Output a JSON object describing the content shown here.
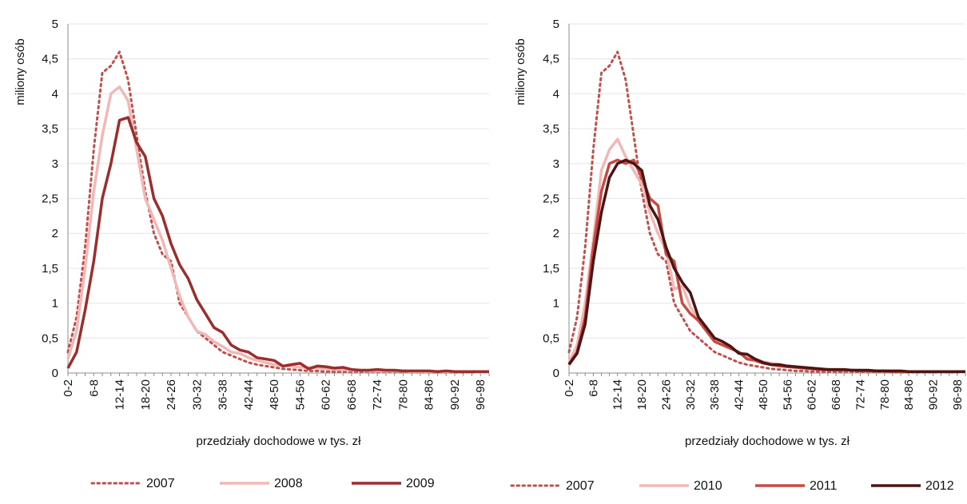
{
  "chart_data": [
    {
      "type": "line",
      "ylabel": "miliony osób",
      "xlabel": "przedziały dochodowe w tys. zł",
      "ylim": [
        0,
        5
      ],
      "yticks": [
        "0",
        "0,5",
        "1",
        "1,5",
        "2",
        "2,5",
        "3",
        "3,5",
        "4",
        "4,5",
        "5"
      ],
      "xtick_labels": [
        "0-2",
        "6-8",
        "12-14",
        "18-20",
        "24-26",
        "30-32",
        "36-38",
        "42-44",
        "48-50",
        "54-56",
        "60-62",
        "66-68",
        "72-74",
        "78-80",
        "84-86",
        "90-92",
        "96-98"
      ],
      "xtick_every": 3,
      "grid": true,
      "legend_position": "bottom",
      "series": [
        {
          "name": "2007",
          "color": "#c0504d",
          "style": "dotted",
          "values": [
            0.3,
            0.8,
            1.8,
            3.2,
            4.3,
            4.4,
            4.6,
            4.2,
            3.4,
            2.6,
            2.0,
            1.7,
            1.6,
            1.0,
            0.8,
            0.6,
            0.5,
            0.4,
            0.3,
            0.25,
            0.2,
            0.15,
            0.12,
            0.1,
            0.08,
            0.06,
            0.05,
            0.04,
            0.03,
            0.03,
            0.02,
            0.02,
            0.02,
            0.02,
            0.02,
            0.02,
            0.02,
            0.02,
            0.02,
            0.02,
            0.01,
            0.01,
            0.01,
            0.01,
            0.01,
            0.01,
            0.01,
            0.01,
            0.01,
            0.01
          ]
        },
        {
          "name": "2008",
          "color": "#f2b8b6",
          "style": "solid",
          "values": [
            0.2,
            0.6,
            1.5,
            2.6,
            3.4,
            4.0,
            4.1,
            3.9,
            3.2,
            2.5,
            2.2,
            1.9,
            1.5,
            1.1,
            0.8,
            0.6,
            0.55,
            0.45,
            0.38,
            0.3,
            0.28,
            0.22,
            0.18,
            0.15,
            0.12,
            0.1,
            0.1,
            0.08,
            0.08,
            0.07,
            0.06,
            0.05,
            0.05,
            0.04,
            0.04,
            0.03,
            0.03,
            0.03,
            0.03,
            0.03,
            0.02,
            0.02,
            0.02,
            0.02,
            0.02,
            0.02,
            0.02,
            0.02,
            0.01,
            0.01
          ]
        },
        {
          "name": "2009",
          "color": "#9b2d2d",
          "style": "solid",
          "values": [
            0.07,
            0.3,
            0.9,
            1.6,
            2.5,
            3.0,
            3.62,
            3.66,
            3.3,
            3.1,
            2.5,
            2.25,
            1.85,
            1.55,
            1.35,
            1.05,
            0.85,
            0.65,
            0.58,
            0.4,
            0.33,
            0.3,
            0.22,
            0.2,
            0.18,
            0.1,
            0.12,
            0.14,
            0.06,
            0.1,
            0.09,
            0.07,
            0.08,
            0.05,
            0.04,
            0.04,
            0.05,
            0.04,
            0.04,
            0.03,
            0.03,
            0.03,
            0.03,
            0.02,
            0.03,
            0.02,
            0.02,
            0.02,
            0.02,
            0.02
          ]
        }
      ],
      "legend": [
        "2007",
        "2008",
        "2009"
      ]
    },
    {
      "type": "line",
      "ylabel": "miliony osób",
      "xlabel": "przedziały dochodowe w tys. zł",
      "ylim": [
        0,
        5
      ],
      "yticks": [
        "0",
        "0,5",
        "1",
        "1,5",
        "2",
        "2,5",
        "3",
        "3,5",
        "4",
        "4,5",
        "5"
      ],
      "xtick_labels": [
        "0-2",
        "6-8",
        "12-14",
        "18-20",
        "24-26",
        "30-32",
        "36-38",
        "42-44",
        "48-50",
        "54-56",
        "60-62",
        "66-68",
        "72-74",
        "78-80",
        "84-86",
        "90-92",
        "96-98"
      ],
      "xtick_every": 3,
      "grid": true,
      "legend_position": "bottom",
      "series": [
        {
          "name": "2007",
          "color": "#c0504d",
          "style": "dotted",
          "values": [
            0.3,
            0.8,
            1.8,
            3.2,
            4.3,
            4.4,
            4.6,
            4.2,
            3.4,
            2.6,
            2.0,
            1.7,
            1.6,
            1.0,
            0.8,
            0.6,
            0.5,
            0.4,
            0.3,
            0.25,
            0.2,
            0.15,
            0.12,
            0.1,
            0.08,
            0.06,
            0.05,
            0.04,
            0.03,
            0.03,
            0.02,
            0.02,
            0.02,
            0.02,
            0.02,
            0.02,
            0.02,
            0.02,
            0.02,
            0.02,
            0.01,
            0.01,
            0.01,
            0.01,
            0.01,
            0.01,
            0.01,
            0.01,
            0.01,
            0.01
          ]
        },
        {
          "name": "2010",
          "color": "#f2b8b6",
          "style": "solid",
          "values": [
            0.15,
            0.4,
            1.0,
            1.9,
            2.9,
            3.2,
            3.35,
            3.1,
            2.9,
            2.7,
            2.3,
            2.0,
            1.75,
            1.2,
            1.25,
            0.95,
            0.75,
            0.6,
            0.45,
            0.4,
            0.35,
            0.3,
            0.22,
            0.2,
            0.16,
            0.14,
            0.12,
            0.1,
            0.09,
            0.08,
            0.07,
            0.06,
            0.05,
            0.05,
            0.04,
            0.04,
            0.04,
            0.03,
            0.03,
            0.03,
            0.03,
            0.02,
            0.02,
            0.02,
            0.02,
            0.02,
            0.02,
            0.02,
            0.02,
            0.01
          ]
        },
        {
          "name": "2011",
          "color": "#c94a45",
          "style": "solid",
          "values": [
            0.13,
            0.3,
            0.8,
            1.8,
            2.6,
            3.0,
            3.05,
            3.0,
            3.05,
            2.8,
            2.5,
            2.4,
            1.7,
            1.6,
            1.0,
            0.85,
            0.75,
            0.6,
            0.45,
            0.4,
            0.35,
            0.3,
            0.2,
            0.18,
            0.14,
            0.12,
            0.1,
            0.09,
            0.08,
            0.07,
            0.06,
            0.05,
            0.05,
            0.04,
            0.04,
            0.04,
            0.03,
            0.03,
            0.03,
            0.03,
            0.02,
            0.02,
            0.02,
            0.02,
            0.02,
            0.02,
            0.02,
            0.02,
            0.02,
            0.02
          ]
        },
        {
          "name": "2012",
          "color": "#4d1414",
          "style": "solid",
          "values": [
            0.12,
            0.28,
            0.7,
            1.6,
            2.3,
            2.8,
            3.0,
            3.05,
            3.0,
            2.9,
            2.4,
            2.2,
            1.8,
            1.5,
            1.3,
            1.15,
            0.8,
            0.65,
            0.5,
            0.45,
            0.38,
            0.28,
            0.27,
            0.2,
            0.15,
            0.12,
            0.12,
            0.1,
            0.09,
            0.08,
            0.07,
            0.06,
            0.05,
            0.05,
            0.05,
            0.04,
            0.04,
            0.04,
            0.03,
            0.03,
            0.03,
            0.03,
            0.02,
            0.02,
            0.02,
            0.02,
            0.02,
            0.02,
            0.02,
            0.02
          ]
        }
      ],
      "legend": [
        "2007",
        "2010",
        "2011",
        "2012"
      ]
    }
  ]
}
